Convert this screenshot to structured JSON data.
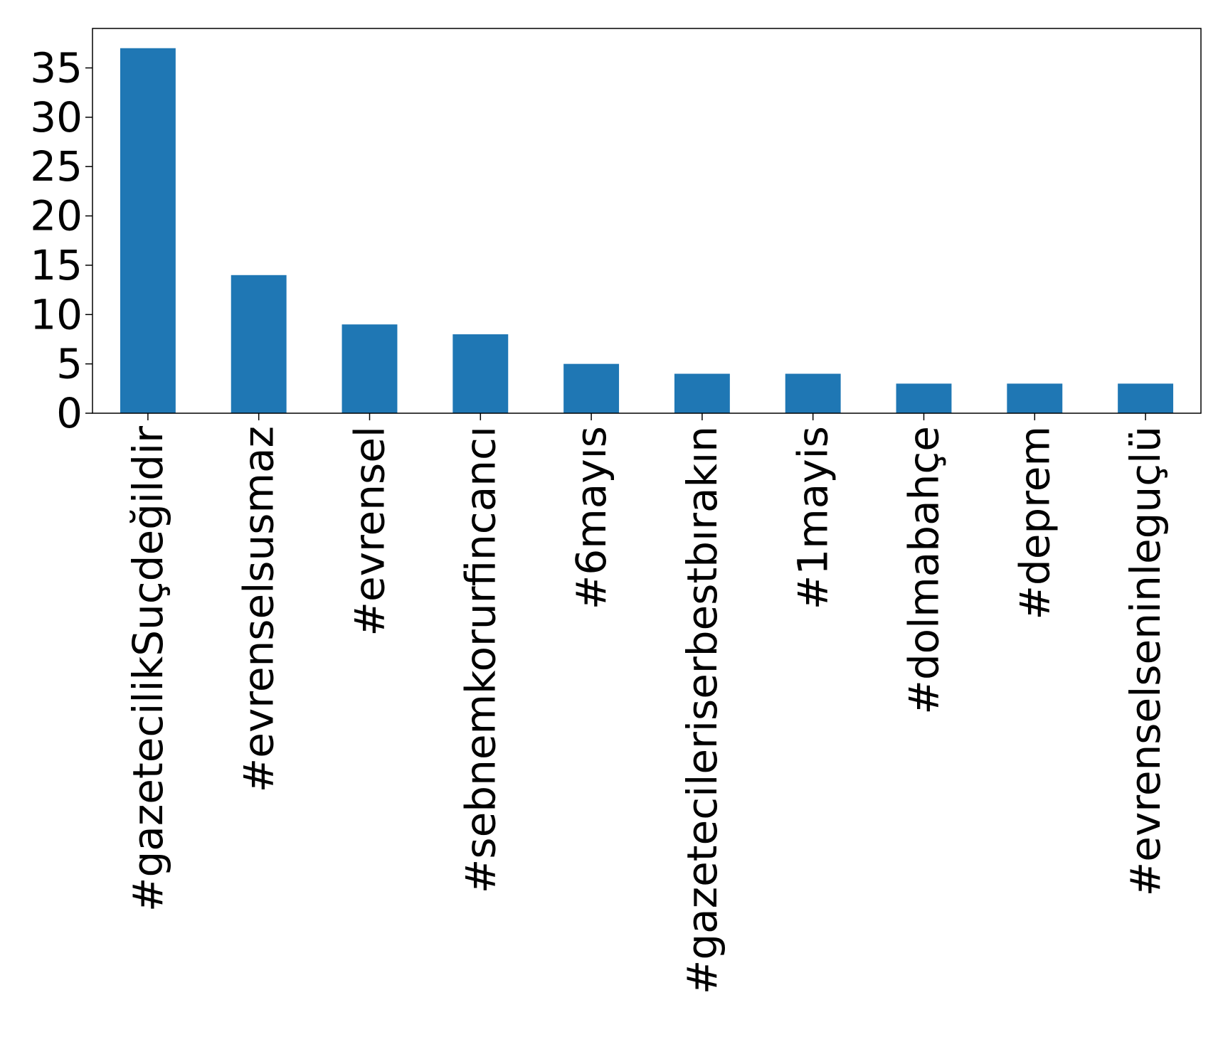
{
  "chart_data": {
    "type": "bar",
    "categories": [
      "#gazetecilikSuçdeğildir",
      "#evrenselsusmaz",
      "#evrensel",
      "#sebnemkorurfincancı",
      "#6mayıs",
      "#gazetecileriserbestbırakın",
      "#1mayis",
      "#dolmabahçe",
      "#deprem",
      "#evrenselseninleguçlü"
    ],
    "values": [
      37,
      14,
      9,
      8,
      5,
      4,
      4,
      3,
      3,
      3
    ],
    "ylim": [
      0,
      39
    ],
    "yticks": [
      0,
      5,
      10,
      15,
      20,
      25,
      30,
      35
    ],
    "grid": false,
    "legend": "none",
    "colors": {
      "bar": "#1f77b4",
      "axis": "#000000"
    }
  }
}
